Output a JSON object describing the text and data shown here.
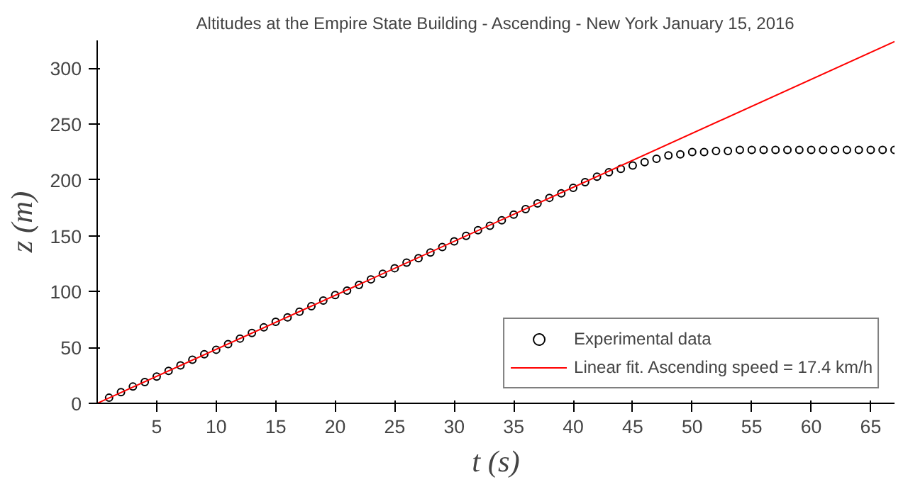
{
  "chart_data": {
    "type": "scatter",
    "title": "Altitudes at the Empire State Building - Ascending - New York January 15, 2016",
    "xlabel": "t (s)",
    "ylabel": "z (m)",
    "xlim": [
      0,
      67
    ],
    "ylim": [
      0,
      325
    ],
    "xticks": [
      5,
      10,
      15,
      20,
      25,
      30,
      35,
      40,
      45,
      50,
      55,
      60,
      65
    ],
    "yticks": [
      0,
      50,
      100,
      150,
      200,
      250,
      300
    ],
    "grid": false,
    "legend": "bottom right",
    "series": [
      {
        "name": "Experimental data",
        "marker": "circle",
        "color": "#000000",
        "x": [
          1,
          2,
          3,
          4,
          5,
          6,
          7,
          8,
          9,
          10,
          11,
          12,
          13,
          14,
          15,
          16,
          17,
          18,
          19,
          20,
          21,
          22,
          23,
          24,
          25,
          26,
          27,
          28,
          29,
          30,
          31,
          32,
          33,
          34,
          35,
          36,
          37,
          38,
          39,
          40,
          41,
          42,
          43,
          44,
          45,
          46,
          47,
          48,
          49,
          50,
          51,
          52,
          53,
          54,
          55,
          56,
          57,
          58,
          59,
          60,
          61,
          62,
          63,
          64,
          65,
          66,
          67
        ],
        "values": [
          5,
          10,
          15,
          19,
          24,
          29,
          34,
          39,
          44,
          48,
          53,
          58,
          63,
          68,
          73,
          77,
          82,
          87,
          92,
          97,
          101,
          106,
          111,
          116,
          121,
          126,
          130,
          135,
          140,
          145,
          150,
          155,
          159,
          164,
          169,
          174,
          179,
          184,
          188,
          193,
          198,
          203,
          207,
          210,
          213,
          216,
          219,
          222,
          223,
          225,
          225,
          226,
          226,
          227,
          227,
          227,
          227,
          227,
          227,
          227,
          227,
          227,
          227,
          227,
          227,
          227,
          227
        ]
      },
      {
        "name": "Linear fit. Ascending speed = 17.4 km/h",
        "type": "line",
        "line_style": "solid",
        "color": "#ff0000",
        "x": [
          0,
          67
        ],
        "values": [
          0,
          324
        ]
      }
    ]
  }
}
